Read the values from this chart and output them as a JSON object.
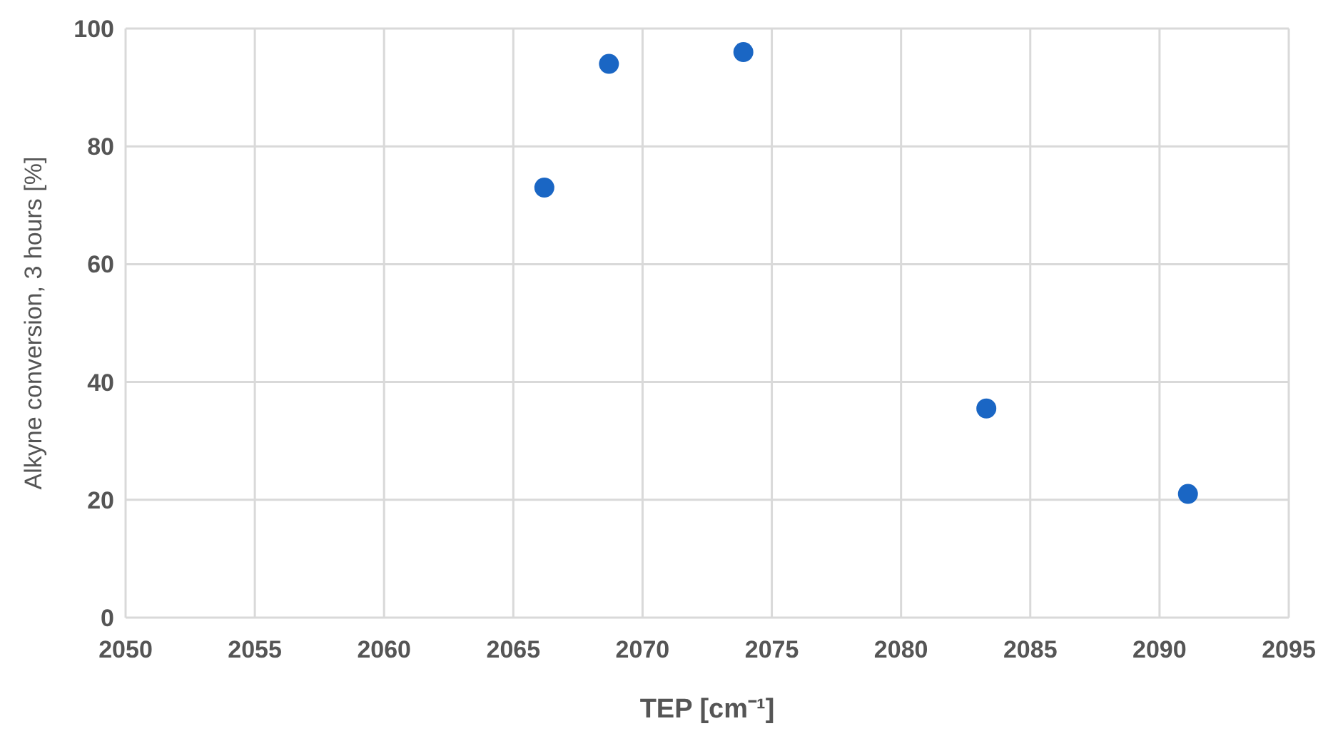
{
  "chart_data": {
    "type": "scatter",
    "xlabel": "TEP  [cm⁻¹]",
    "ylabel": "Alkyne conversion, 3 hours [%]",
    "x": [
      2066.2,
      2068.7,
      2073.9,
      2083.3,
      2091.1
    ],
    "series": [
      {
        "color": "#1a66c4",
        "values": [
          73,
          94,
          96,
          35.5,
          21
        ]
      }
    ],
    "xlim": [
      2050,
      2095
    ],
    "xticks": [
      2050,
      2055,
      2060,
      2065,
      2070,
      2075,
      2080,
      2085,
      2090,
      2095
    ],
    "ylim": [
      0,
      100
    ],
    "yticks": [
      0,
      20,
      40,
      60,
      80,
      100
    ],
    "grid": true,
    "marker": "circle"
  }
}
